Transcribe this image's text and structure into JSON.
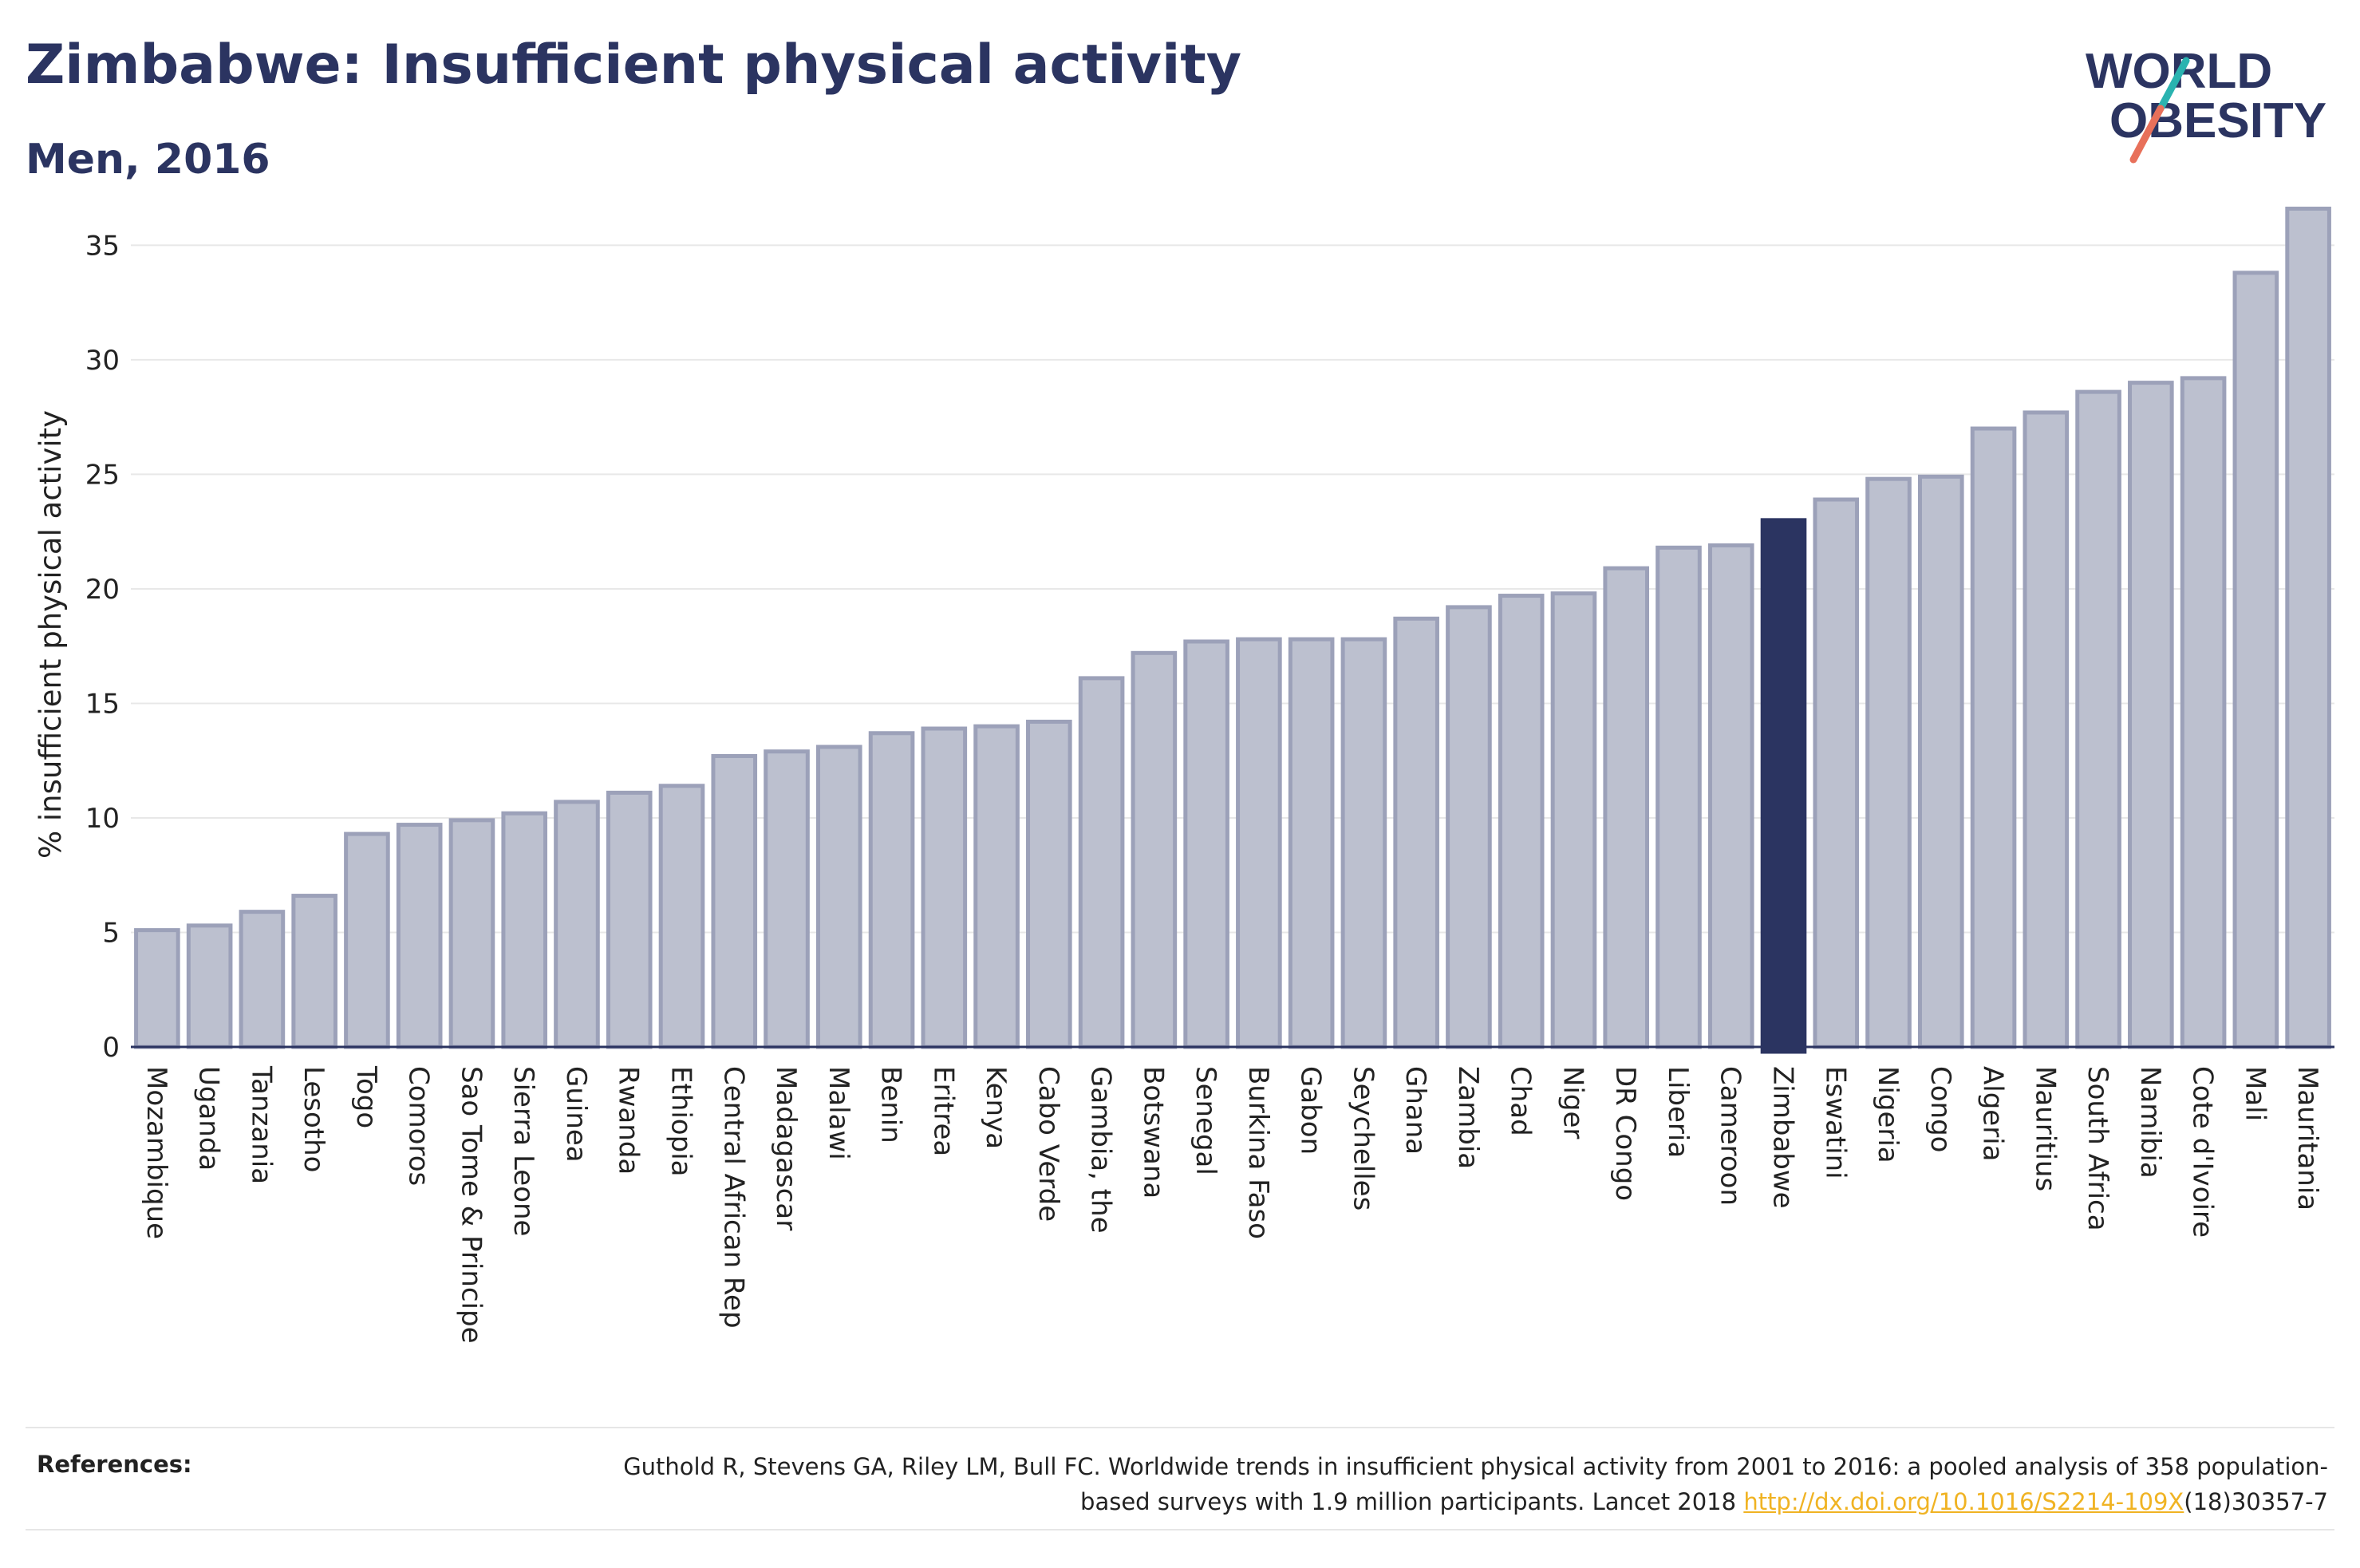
{
  "header": {
    "title": "Zimbabwe: Insufficient physical activity",
    "subtitle": "Men, 2016"
  },
  "logo": {
    "line1": "WORLD",
    "line2": "OBESITY",
    "text_color": "#2b3461",
    "slash_colors": [
      "#2ab3b0",
      "#e8705a"
    ]
  },
  "chart_data": {
    "type": "bar",
    "ylabel": "% insufficient physical activity",
    "xlabel": "",
    "ylim": [
      0,
      37
    ],
    "yticks": [
      0,
      5,
      10,
      15,
      20,
      25,
      30,
      35
    ],
    "grid": true,
    "highlight": "Zimbabwe",
    "colors": {
      "bar": "#bcc0cf",
      "bar_edge": "#9ca1b9",
      "highlight": "#2b3461",
      "grid": "#e8e8e8"
    },
    "categories": [
      "Mozambique",
      "Uganda",
      "Tanzania",
      "Lesotho",
      "Togo",
      "Comoros",
      "Sao Tome & Principe",
      "Sierra Leone",
      "Guinea",
      "Rwanda",
      "Ethiopia",
      "Central African Rep",
      "Madagascar",
      "Malawi",
      "Benin",
      "Eritrea",
      "Kenya",
      "Cabo Verde",
      "Gambia, the",
      "Botswana",
      "Senegal",
      "Burkina Faso",
      "Gabon",
      "Seychelles",
      "Ghana",
      "Zambia",
      "Chad",
      "Niger",
      "DR Congo",
      "Liberia",
      "Cameroon",
      "Zimbabwe",
      "Eswatini",
      "Nigeria",
      "Congo",
      "Algeria",
      "Mauritius",
      "South Africa",
      "Namibia",
      "Cote d'Ivoire",
      "Mali",
      "Mauritania"
    ],
    "values": [
      5.1,
      5.3,
      5.9,
      6.6,
      9.3,
      9.7,
      9.9,
      10.2,
      10.7,
      11.1,
      11.4,
      12.7,
      12.9,
      13.1,
      13.7,
      13.9,
      14.0,
      14.2,
      16.1,
      17.2,
      17.7,
      17.8,
      17.8,
      17.8,
      18.7,
      19.2,
      19.7,
      19.8,
      20.9,
      21.8,
      21.9,
      23.0,
      23.9,
      24.8,
      24.9,
      27.0,
      27.7,
      28.6,
      29.0,
      29.2,
      33.8,
      36.6
    ]
  },
  "references": {
    "label": "References:",
    "text_before": "Guthold R, Stevens GA, Riley LM, Bull FC. Worldwide trends in insufficient physical activity from 2001 to 2016: a pooled analysis of 358 population-based surveys with 1.9 million participants. Lancet 2018 ",
    "link": "http://dx.doi.org/10.1016/S2214-109X",
    "text_after": "(18)30357-7"
  }
}
